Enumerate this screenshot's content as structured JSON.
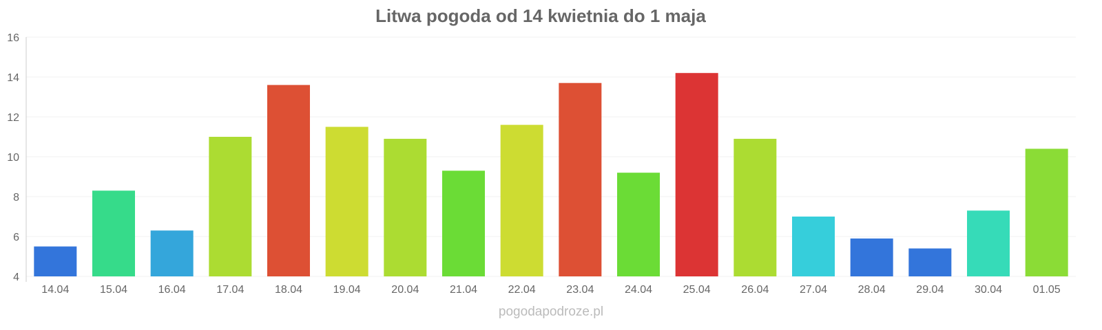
{
  "chart_data": {
    "type": "bar",
    "title": "Litwa pogoda od 14 kwietnia do 1 maja",
    "xlabel": "",
    "ylabel": "",
    "ylim": [
      4,
      16
    ],
    "yticks": [
      "4",
      "6",
      "8",
      "10",
      "12",
      "14",
      "16"
    ],
    "grid": true,
    "categories": [
      "14.04",
      "15.04",
      "16.04",
      "17.04",
      "18.04",
      "19.04",
      "20.04",
      "21.04",
      "22.04",
      "23.04",
      "24.04",
      "25.04",
      "26.04",
      "27.04",
      "28.04",
      "29.04",
      "30.04",
      "01.05"
    ],
    "values": [
      5.5,
      8.3,
      6.3,
      11.0,
      13.6,
      11.5,
      10.9,
      9.3,
      11.6,
      13.7,
      9.2,
      14.2,
      10.9,
      7.0,
      5.9,
      5.4,
      7.3,
      10.4
    ],
    "colors": [
      "#3375db",
      "#36db8a",
      "#34a6db",
      "#acdc32",
      "#dd5034",
      "#cddc32",
      "#acdc32",
      "#6bdc36",
      "#cddc32",
      "#dd5034",
      "#6bdc36",
      "#dc3434",
      "#acdc32",
      "#36cedb",
      "#3375db",
      "#3375db",
      "#36dbb8",
      "#8bdc36"
    ]
  },
  "credit": "pogodapodroze.pl"
}
